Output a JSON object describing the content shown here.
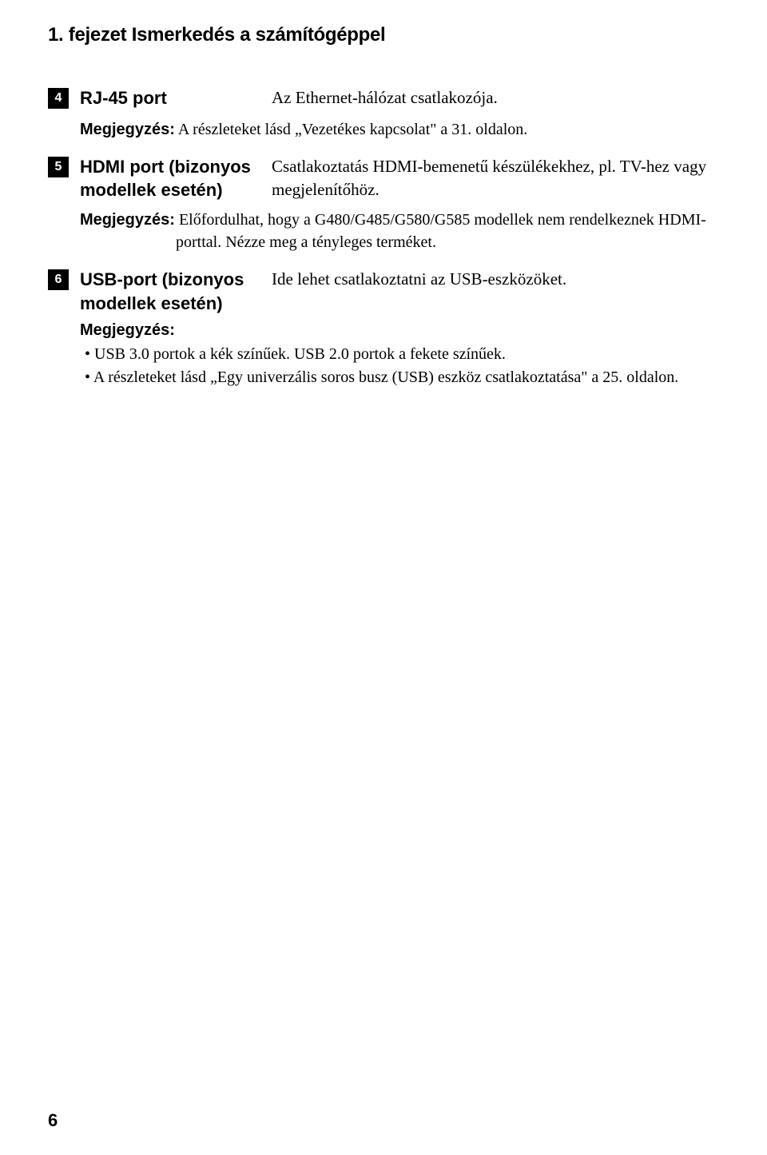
{
  "chapterTitle": "1. fejezet Ismerkedés a számítógéppel",
  "items": [
    {
      "number": "4",
      "label": "RJ-45 port",
      "description": "Az Ethernet-hálózat csatlakozója.",
      "noteLabel": "Megjegyzés:",
      "noteText": " A részleteket lásd „Vezetékes kapcsolat\" a 31. oldalon."
    },
    {
      "number": "5",
      "label": "HDMI port (bizonyos modellek esetén)",
      "description": "Csatlakoztatás HDMI-bemenetű készülékekhez, pl. TV-hez vagy megjelenítőhöz.",
      "noteLabel": "Megjegyzés:",
      "noteText": " Előfordulhat, hogy a G480/G485/G580/G585 modellek nem rendelkeznek HDMI-porttal. Nézze meg a tényleges terméket."
    },
    {
      "number": "6",
      "label": "USB-port (bizonyos modellek esetén)",
      "description": "Ide lehet csatlakoztatni az USB-eszközöket.",
      "noteBlockLabel": "Megjegyzés:",
      "bullets": [
        "•  USB 3.0 portok a kék színűek. USB 2.0 portok a fekete színűek.",
        "•  A részleteket lásd „Egy univerzális soros busz (USB) eszköz csatlakoztatása\" a 25. oldalon."
      ]
    }
  ],
  "pageNumber": "6"
}
